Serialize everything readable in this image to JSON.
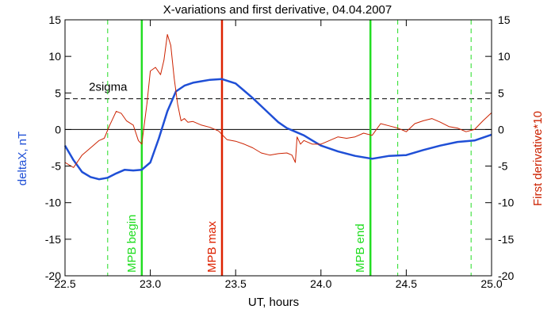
{
  "chart_data": {
    "type": "line",
    "title": "X-variations and first derivative, 04.04.2007",
    "xlabel": "UT, hours",
    "ylabel_left": "deltaX, nT",
    "ylabel_right": "First derivative*10",
    "xlim": [
      22.5,
      25.0
    ],
    "ylim": [
      -20,
      15
    ],
    "x_ticks": [
      "22.5",
      "23.0",
      "23.5",
      "24.0",
      "24.5",
      "25.0"
    ],
    "x_tick_values": [
      22.5,
      23.0,
      23.5,
      24.0,
      24.5,
      25.0
    ],
    "y_ticks": [
      "15",
      "10",
      "5",
      "0",
      "-5",
      "-10",
      "-15",
      "-20"
    ],
    "y_tick_values": [
      15,
      10,
      5,
      0,
      -5,
      -10,
      -15,
      -20
    ],
    "grid": false,
    "colors": {
      "deltaX": "#1f4fd6",
      "derivative": "#cc2200",
      "mpb_boundary": "#22dd22",
      "mpb_max": "#dd2200",
      "axes": "#000000"
    },
    "series": [
      {
        "key": "deltaX",
        "x": [
          22.5,
          22.55,
          22.6,
          22.65,
          22.7,
          22.75,
          22.8,
          22.85,
          22.9,
          22.95,
          23.0,
          23.05,
          23.1,
          23.15,
          23.2,
          23.25,
          23.3,
          23.35,
          23.42,
          23.5,
          23.55,
          23.6,
          23.65,
          23.7,
          23.75,
          23.8,
          23.85,
          23.9,
          23.95,
          24.0,
          24.1,
          24.2,
          24.3,
          24.4,
          24.5,
          24.6,
          24.7,
          24.8,
          24.9,
          25.0
        ],
        "values": [
          -2.2,
          -4.2,
          -5.8,
          -6.5,
          -6.8,
          -6.6,
          -6.0,
          -5.5,
          -5.6,
          -5.5,
          -4.5,
          -1.2,
          2.5,
          5.2,
          6.0,
          6.4,
          6.6,
          6.8,
          6.9,
          6.3,
          5.3,
          4.3,
          3.2,
          2.1,
          1.0,
          0.2,
          -0.3,
          -0.8,
          -1.5,
          -2.2,
          -3.0,
          -3.6,
          -4.0,
          -3.6,
          -3.5,
          -2.8,
          -2.2,
          -1.7,
          -1.5,
          -0.7
        ]
      },
      {
        "key": "derivative",
        "x": [
          22.5,
          22.55,
          22.6,
          22.65,
          22.7,
          22.73,
          22.76,
          22.8,
          22.83,
          22.86,
          22.9,
          22.93,
          22.95,
          22.98,
          23.0,
          23.03,
          23.06,
          23.08,
          23.1,
          23.12,
          23.14,
          23.16,
          23.18,
          23.2,
          23.22,
          23.25,
          23.3,
          23.35,
          23.4,
          23.45,
          23.5,
          23.55,
          23.6,
          23.65,
          23.7,
          23.75,
          23.8,
          23.83,
          23.85,
          23.86,
          23.88,
          23.9,
          23.95,
          24.0,
          24.05,
          24.1,
          24.15,
          24.2,
          24.25,
          24.3,
          24.35,
          24.4,
          24.45,
          24.5,
          24.55,
          24.6,
          24.65,
          24.7,
          24.75,
          24.8,
          24.85,
          24.9,
          24.95,
          25.0
        ],
        "values": [
          -4.5,
          -5.2,
          -3.5,
          -2.5,
          -1.5,
          -1.2,
          0.5,
          2.5,
          2.2,
          1.2,
          0.6,
          -1.5,
          -2.0,
          3.5,
          8.0,
          8.5,
          7.5,
          9.5,
          13.0,
          11.5,
          7.0,
          3.5,
          1.2,
          1.5,
          1.0,
          1.1,
          0.6,
          0.3,
          -0.2,
          -1.4,
          -1.6,
          -2.0,
          -2.5,
          -3.2,
          -3.5,
          -3.3,
          -3.2,
          -3.5,
          -4.5,
          -1.0,
          -2.0,
          -1.5,
          -2.0,
          -2.0,
          -1.5,
          -1.0,
          -1.2,
          -1.0,
          -0.5,
          -0.8,
          0.8,
          0.5,
          0.2,
          -0.3,
          0.8,
          1.2,
          1.5,
          1.0,
          0.4,
          0.2,
          -0.3,
          0.0,
          1.2,
          2.3
        ]
      }
    ],
    "threshold_line": {
      "y": 4.2,
      "label": "2sigma",
      "style": "dashed"
    },
    "zero_line": {
      "y": 0
    },
    "vertical_markers": [
      {
        "x": 22.95,
        "label": "MPB begin",
        "style": "solid",
        "color": "#22dd22"
      },
      {
        "x": 23.42,
        "label": "MPB max",
        "style": "solid",
        "color": "#dd2200"
      },
      {
        "x": 24.29,
        "label": "MPB end",
        "style": "solid",
        "color": "#22dd22"
      }
    ],
    "dashed_markers": [
      {
        "x": 22.75,
        "color": "#22dd22"
      },
      {
        "x": 24.45,
        "color": "#22dd22"
      },
      {
        "x": 24.88,
        "color": "#22dd22"
      }
    ]
  }
}
